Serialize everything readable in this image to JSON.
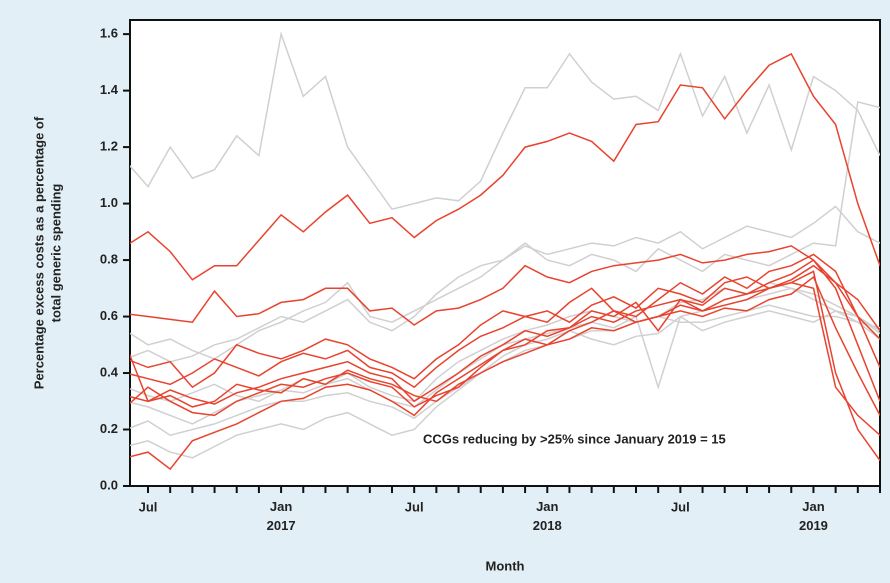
{
  "chart_data": {
    "type": "line",
    "ylabel": [
      "Percentage excess costs as a percentage of",
      "total generic spending"
    ],
    "xlabel": "Month",
    "annotation": "CCGs reducing by >25% since January 2019 = 15",
    "categories": [
      null,
      "Jul",
      null,
      null,
      null,
      null,
      null,
      "Jan 2017",
      null,
      null,
      null,
      null,
      null,
      "Jul",
      null,
      null,
      null,
      null,
      null,
      "Jan 2018",
      null,
      null,
      null,
      null,
      null,
      "Jul",
      null,
      null,
      null,
      null,
      null,
      "Jan 2019",
      null,
      null,
      null
    ],
    "ylim": [
      0,
      1.65
    ],
    "yticks": [
      {
        "value": 0,
        "label": "0.0"
      },
      0.2,
      0.4,
      0.6,
      0.8,
      {
        "value": 1,
        "label": "1.0"
      },
      1.2,
      1.4,
      1.6
    ],
    "series": [
      {
        "color": "#d0d0d0",
        "values": [
          1.15,
          1.06,
          1.2,
          1.09,
          1.12,
          1.24,
          1.17,
          1.6,
          1.38,
          1.45,
          1.2,
          1.09,
          0.98,
          1.0,
          1.02,
          1.01,
          1.08,
          1.25,
          1.41,
          1.41,
          1.53,
          1.43,
          1.37,
          1.38,
          1.33,
          1.53,
          1.31,
          1.45,
          1.25,
          1.42,
          1.19,
          1.45,
          1.4,
          1.33,
          1.17
        ]
      },
      {
        "color": "#d0d0d0",
        "values": [
          0.2,
          0.23,
          0.18,
          0.2,
          0.22,
          0.25,
          0.28,
          0.3,
          0.3,
          0.32,
          0.33,
          0.3,
          0.28,
          0.24,
          0.3,
          0.35,
          0.4,
          0.44,
          0.48,
          0.5,
          0.52,
          0.55,
          0.55,
          0.58,
          0.6,
          0.58,
          0.58,
          0.6,
          0.62,
          0.64,
          0.62,
          0.6,
          0.6,
          0.58,
          0.52
        ]
      },
      {
        "color": "#d0d0d0",
        "values": [
          0.55,
          0.5,
          0.52,
          0.48,
          0.45,
          0.5,
          0.55,
          0.58,
          0.62,
          0.65,
          0.72,
          0.6,
          0.58,
          0.62,
          0.66,
          0.7,
          0.74,
          0.8,
          0.85,
          0.82,
          0.84,
          0.86,
          0.85,
          0.88,
          0.86,
          0.9,
          0.84,
          0.88,
          0.92,
          0.9,
          0.88,
          0.93,
          0.99,
          0.9,
          0.86
        ]
      },
      {
        "color": "#d0d0d0",
        "values": [
          0.35,
          0.32,
          0.3,
          0.33,
          0.36,
          0.32,
          0.3,
          0.34,
          0.38,
          0.36,
          0.4,
          0.35,
          0.32,
          0.3,
          0.38,
          0.44,
          0.48,
          0.52,
          0.55,
          0.57,
          0.6,
          0.62,
          0.6,
          0.58,
          0.6,
          0.65,
          0.66,
          0.7,
          0.68,
          0.72,
          0.7,
          0.68,
          0.64,
          0.6,
          0.55
        ]
      },
      {
        "color": "#d0d0d0",
        "values": [
          0.14,
          0.16,
          0.12,
          0.1,
          0.14,
          0.18,
          0.2,
          0.22,
          0.2,
          0.24,
          0.26,
          0.22,
          0.18,
          0.2,
          0.28,
          0.34,
          0.4,
          0.46,
          0.5,
          0.52,
          0.55,
          0.52,
          0.5,
          0.53,
          0.54,
          0.6,
          0.55,
          0.58,
          0.6,
          0.62,
          0.6,
          0.58,
          0.62,
          0.6,
          0.54
        ]
      },
      {
        "color": "#d0d0d0",
        "values": [
          0.45,
          0.48,
          0.44,
          0.46,
          0.5,
          0.52,
          0.56,
          0.6,
          0.58,
          0.62,
          0.66,
          0.58,
          0.55,
          0.6,
          0.68,
          0.74,
          0.78,
          0.8,
          0.86,
          0.8,
          0.78,
          0.82,
          0.8,
          0.76,
          0.84,
          0.8,
          0.76,
          0.82,
          0.8,
          0.78,
          0.82,
          0.86,
          0.85,
          1.36,
          1.34
        ]
      },
      {
        "color": "#d0d0d0",
        "values": [
          0.3,
          0.28,
          0.25,
          0.22,
          0.26,
          0.3,
          0.32,
          0.34,
          0.33,
          0.36,
          0.38,
          0.34,
          0.3,
          0.28,
          0.34,
          0.4,
          0.45,
          0.5,
          0.52,
          0.54,
          0.56,
          0.58,
          0.56,
          0.6,
          0.35,
          0.6,
          0.62,
          0.64,
          0.66,
          0.68,
          0.7,
          0.66,
          0.62,
          0.58,
          0.56
        ]
      },
      {
        "color": "#e8432e",
        "values": [
          0.85,
          0.9,
          0.83,
          0.73,
          0.78,
          0.78,
          0.87,
          0.96,
          0.9,
          0.97,
          1.03,
          0.93,
          0.95,
          0.88,
          0.94,
          0.98,
          1.03,
          1.1,
          1.2,
          1.22,
          1.25,
          1.22,
          1.15,
          1.28,
          1.29,
          1.42,
          1.41,
          1.3,
          1.4,
          1.49,
          1.53,
          1.38,
          1.28,
          1.0,
          0.78
        ]
      },
      {
        "color": "#e8432e",
        "values": [
          0.61,
          0.6,
          0.59,
          0.58,
          0.69,
          0.6,
          0.61,
          0.65,
          0.66,
          0.7,
          0.7,
          0.62,
          0.63,
          0.57,
          0.62,
          0.63,
          0.66,
          0.7,
          0.78,
          0.74,
          0.72,
          0.76,
          0.78,
          0.79,
          0.8,
          0.82,
          0.79,
          0.8,
          0.82,
          0.83,
          0.85,
          0.8,
          0.72,
          0.6,
          0.52
        ]
      },
      {
        "color": "#e8432e",
        "values": [
          0.1,
          0.12,
          0.06,
          0.16,
          0.19,
          0.22,
          0.26,
          0.3,
          0.31,
          0.35,
          0.36,
          0.34,
          0.3,
          0.25,
          0.33,
          0.38,
          0.43,
          0.48,
          0.5,
          0.55,
          0.56,
          0.6,
          0.58,
          0.62,
          0.64,
          0.66,
          0.62,
          0.64,
          0.66,
          0.7,
          0.72,
          0.76,
          0.4,
          0.2,
          0.09
        ]
      },
      {
        "color": "#e8432e",
        "values": [
          0.32,
          0.3,
          0.34,
          0.31,
          0.29,
          0.33,
          0.35,
          0.38,
          0.4,
          0.42,
          0.44,
          0.4,
          0.38,
          0.3,
          0.35,
          0.4,
          0.46,
          0.5,
          0.55,
          0.53,
          0.56,
          0.62,
          0.6,
          0.65,
          0.55,
          0.66,
          0.64,
          0.7,
          0.68,
          0.72,
          0.75,
          0.8,
          0.7,
          0.5,
          0.3
        ]
      },
      {
        "color": "#e8432e",
        "values": [
          0.45,
          0.42,
          0.44,
          0.35,
          0.4,
          0.5,
          0.47,
          0.45,
          0.48,
          0.52,
          0.5,
          0.45,
          0.42,
          0.38,
          0.45,
          0.5,
          0.57,
          0.62,
          0.6,
          0.58,
          0.65,
          0.7,
          0.62,
          0.6,
          0.66,
          0.72,
          0.68,
          0.74,
          0.7,
          0.76,
          0.78,
          0.82,
          0.76,
          0.6,
          0.42
        ]
      },
      {
        "color": "#e8432e",
        "values": [
          0.28,
          0.35,
          0.3,
          0.26,
          0.25,
          0.3,
          0.33,
          0.36,
          0.35,
          0.38,
          0.4,
          0.37,
          0.35,
          0.28,
          0.32,
          0.35,
          0.42,
          0.48,
          0.52,
          0.5,
          0.55,
          0.58,
          0.62,
          0.58,
          0.6,
          0.64,
          0.62,
          0.66,
          0.68,
          0.7,
          0.72,
          0.7,
          0.35,
          0.25,
          0.18
        ]
      },
      {
        "color": "#e8432e",
        "values": [
          0.4,
          0.38,
          0.36,
          0.4,
          0.45,
          0.42,
          0.39,
          0.44,
          0.47,
          0.45,
          0.48,
          0.42,
          0.4,
          0.35,
          0.42,
          0.48,
          0.53,
          0.56,
          0.6,
          0.62,
          0.58,
          0.64,
          0.67,
          0.63,
          0.7,
          0.68,
          0.65,
          0.72,
          0.74,
          0.7,
          0.73,
          0.78,
          0.72,
          0.66,
          0.55
        ]
      },
      {
        "color": "#e8432e",
        "values": [
          0.5,
          0.3,
          0.32,
          0.28,
          0.3,
          0.36,
          0.34,
          0.33,
          0.38,
          0.36,
          0.41,
          0.38,
          0.36,
          0.32,
          0.3,
          0.36,
          0.4,
          0.44,
          0.47,
          0.5,
          0.52,
          0.56,
          0.55,
          0.58,
          0.6,
          0.62,
          0.6,
          0.63,
          0.62,
          0.66,
          0.68,
          0.74,
          0.56,
          0.4,
          0.25
        ]
      }
    ]
  }
}
